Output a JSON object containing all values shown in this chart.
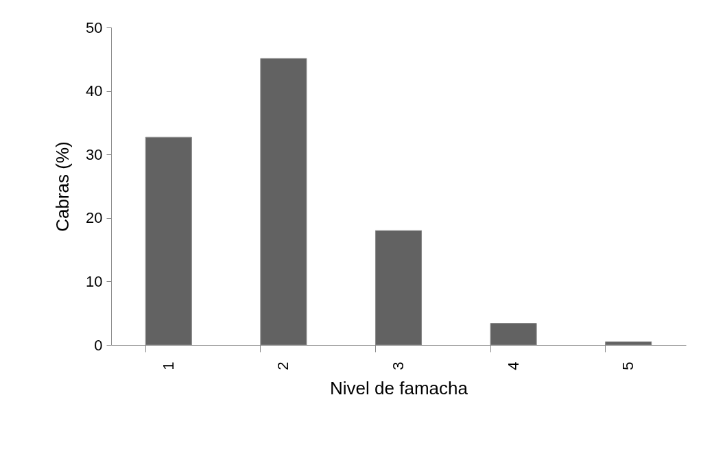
{
  "chart_data": {
    "type": "bar",
    "xlabel": "Nivel de famacha",
    "ylabel": "Cabras (%)",
    "categories": [
      "1",
      "2",
      "3",
      "4",
      "5"
    ],
    "values": [
      32.7,
      45.1,
      18.0,
      3.4,
      0.5
    ],
    "color": "#626262",
    "ylim": [
      0,
      50
    ],
    "yticks": [
      0,
      10,
      20,
      30,
      40,
      50
    ],
    "grid": false
  }
}
